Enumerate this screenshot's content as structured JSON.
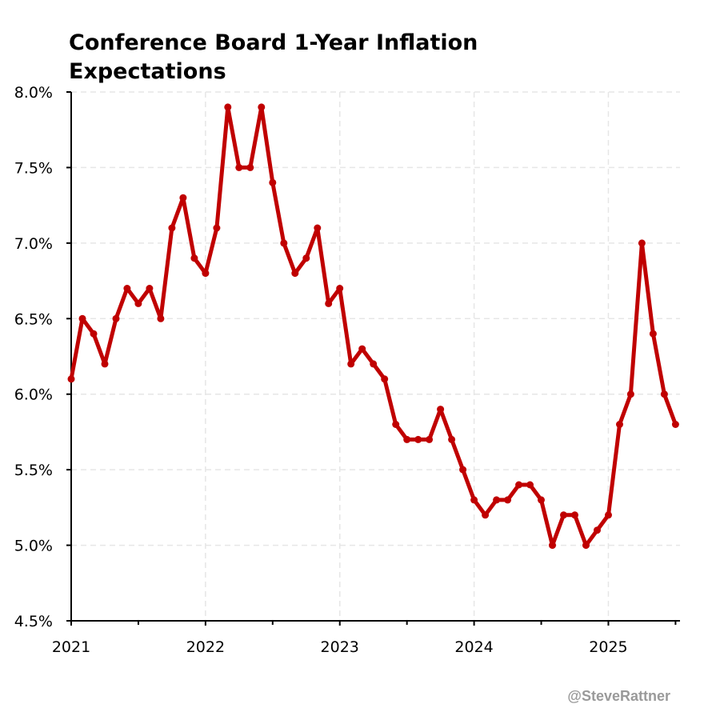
{
  "chart_data": {
    "type": "line",
    "title": "Conference Board 1-Year Inflation Expectations",
    "xlabel": "",
    "ylabel": "",
    "ylim": [
      4.5,
      8.0
    ],
    "yticks": [
      "4.5%",
      "5.0%",
      "5.5%",
      "6.0%",
      "6.5%",
      "7.0%",
      "7.5%",
      "8.0%"
    ],
    "ytick_values": [
      4.5,
      5.0,
      5.5,
      6.0,
      6.5,
      7.0,
      7.5,
      8.0
    ],
    "xticks": [
      "2021",
      "2022",
      "2023",
      "2024",
      "2025"
    ],
    "x_start": "2021-01",
    "x_end": "2025-07",
    "grid": true,
    "color": "#c00000",
    "series": [
      {
        "x": [
          "2021-01",
          "2021-02",
          "2021-03",
          "2021-04",
          "2021-05",
          "2021-06",
          "2021-07",
          "2021-08",
          "2021-09",
          "2021-10",
          "2021-11",
          "2021-12",
          "2022-01",
          "2022-02",
          "2022-03",
          "2022-04",
          "2022-05",
          "2022-06",
          "2022-07",
          "2022-08",
          "2022-09",
          "2022-10",
          "2022-11",
          "2022-12",
          "2023-01",
          "2023-02",
          "2023-03",
          "2023-04",
          "2023-05",
          "2023-06",
          "2023-07",
          "2023-08",
          "2023-09",
          "2023-10",
          "2023-11",
          "2023-12",
          "2024-01",
          "2024-02",
          "2024-03",
          "2024-04",
          "2024-05",
          "2024-06",
          "2024-07",
          "2024-08",
          "2024-09",
          "2024-10",
          "2024-11",
          "2024-12",
          "2025-01",
          "2025-02",
          "2025-03",
          "2025-04",
          "2025-05",
          "2025-06",
          "2025-07"
        ],
        "values": [
          6.1,
          6.5,
          6.4,
          6.2,
          6.5,
          6.7,
          6.6,
          6.7,
          6.5,
          7.1,
          7.3,
          6.9,
          6.8,
          7.1,
          7.9,
          7.5,
          7.5,
          7.9,
          7.4,
          7.0,
          6.8,
          6.9,
          7.1,
          6.6,
          6.7,
          6.2,
          6.3,
          6.2,
          6.1,
          5.8,
          5.7,
          5.7,
          5.7,
          5.9,
          5.7,
          5.5,
          5.3,
          5.2,
          5.3,
          5.3,
          5.4,
          5.4,
          5.3,
          5.0,
          5.2,
          5.2,
          5.0,
          5.1,
          5.2,
          5.8,
          6.0,
          7.0,
          6.4,
          6.0,
          5.8
        ]
      }
    ]
  },
  "credit": "@SteveRattner"
}
